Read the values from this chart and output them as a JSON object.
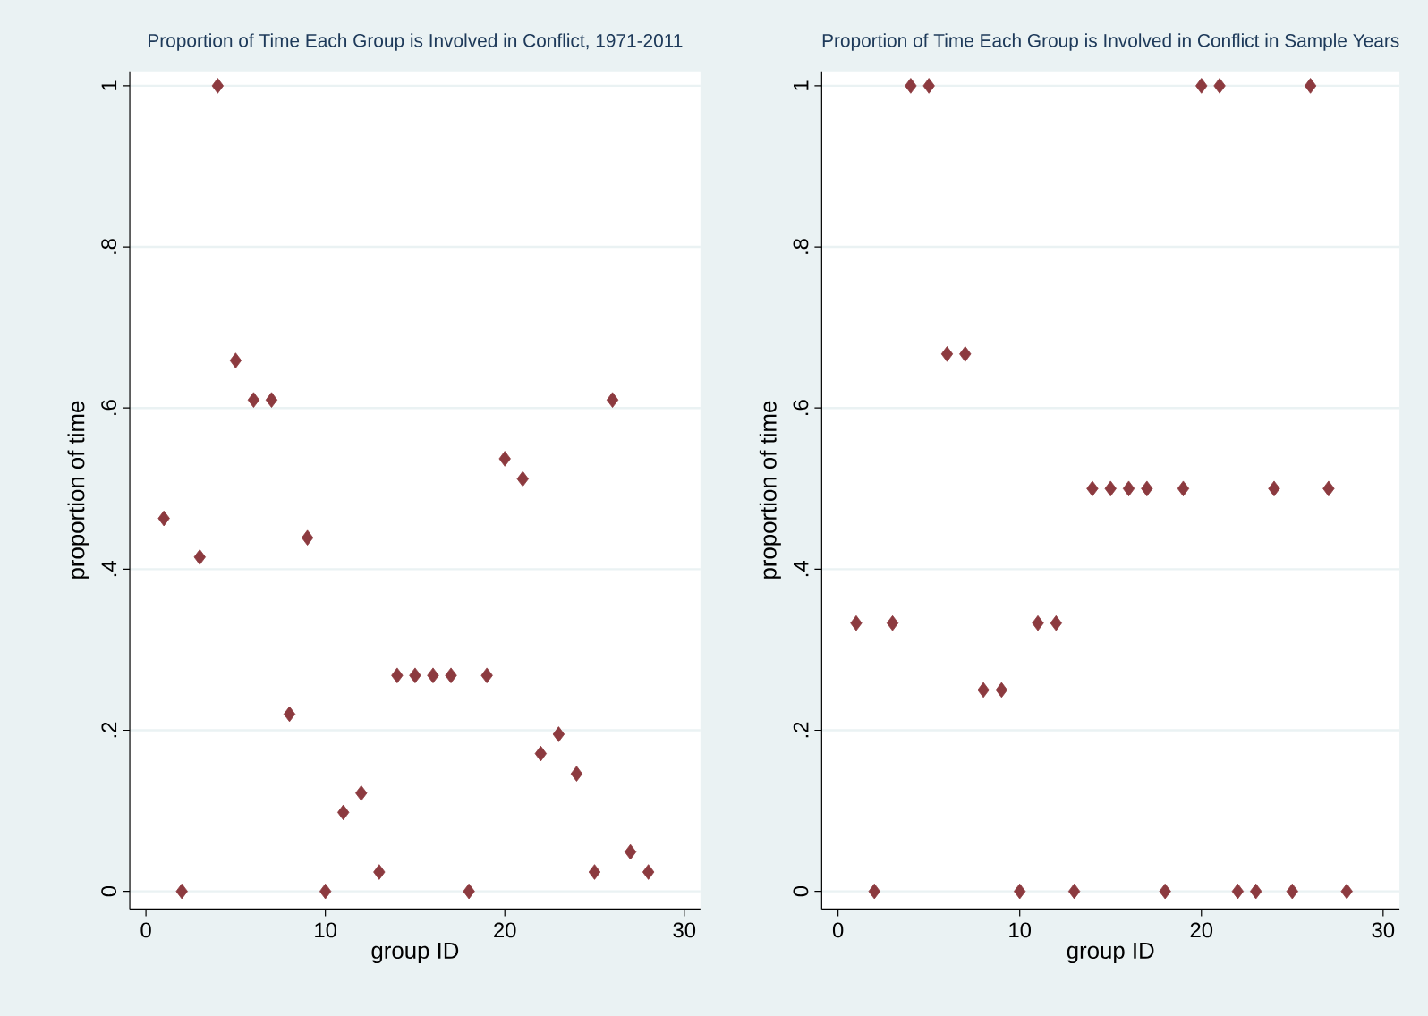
{
  "chart_data": [
    {
      "type": "scatter",
      "title": "Proportion of Time Each Group is Involved in Conflict, 1971-2011",
      "xlabel": "group ID",
      "ylabel": "proportion of time",
      "x": [
        1,
        2,
        3,
        4,
        5,
        6,
        7,
        8,
        9,
        10,
        11,
        12,
        13,
        14,
        15,
        16,
        17,
        18,
        19,
        20,
        21,
        22,
        23,
        24,
        25,
        26,
        27,
        28
      ],
      "series": [
        {
          "color": "#8c3a3f",
          "values": [
            0.463,
            0,
            0.415,
            1,
            0.659,
            0.61,
            0.61,
            0.22,
            0.439,
            0,
            0.098,
            0.122,
            0.024,
            0.268,
            0.268,
            0.268,
            0.268,
            0,
            0.268,
            0.537,
            0.512,
            0.171,
            0.195,
            0.146,
            0.024,
            0.61,
            0.049,
            0.024
          ]
        }
      ],
      "xlim": [
        -0.9,
        30.9
      ],
      "ylim": [
        -0.022,
        1.018
      ],
      "xticks": [
        0,
        10,
        20,
        30
      ],
      "yticks": [
        0,
        {
          "value": 0.2,
          "label": ".2"
        },
        {
          "value": 0.4,
          "label": ".4"
        },
        {
          "value": 0.6,
          "label": ".6"
        },
        {
          "value": 0.8,
          "label": ".8"
        },
        1
      ],
      "grid": "y",
      "marker": "diamond"
    },
    {
      "type": "scatter",
      "title": "Proportion of Time Each Group is Involved in Conflict in Sample Years",
      "xlabel": "group ID",
      "ylabel": "proportion of time",
      "x": [
        1,
        2,
        3,
        4,
        5,
        6,
        7,
        8,
        9,
        10,
        11,
        12,
        13,
        14,
        15,
        16,
        17,
        18,
        19,
        20,
        21,
        22,
        23,
        24,
        25,
        26,
        27,
        28
      ],
      "series": [
        {
          "color": "#8c3a3f",
          "values": [
            0.333,
            0,
            0.333,
            1,
            1,
            0.667,
            0.667,
            0.25,
            0.25,
            0,
            0.333,
            0.333,
            0,
            0.5,
            0.5,
            0.5,
            0.5,
            0,
            0.5,
            1,
            1,
            0,
            0,
            0.5,
            0,
            1,
            0.5,
            0
          ]
        }
      ],
      "xlim": [
        -0.9,
        30.9
      ],
      "ylim": [
        -0.022,
        1.018
      ],
      "xticks": [
        0,
        10,
        20,
        30
      ],
      "yticks": [
        0,
        {
          "value": 0.2,
          "label": ".2"
        },
        {
          "value": 0.4,
          "label": ".4"
        },
        {
          "value": 0.6,
          "label": ".6"
        },
        {
          "value": 0.8,
          "label": ".8"
        },
        1
      ],
      "grid": "y",
      "marker": "diamond"
    }
  ]
}
